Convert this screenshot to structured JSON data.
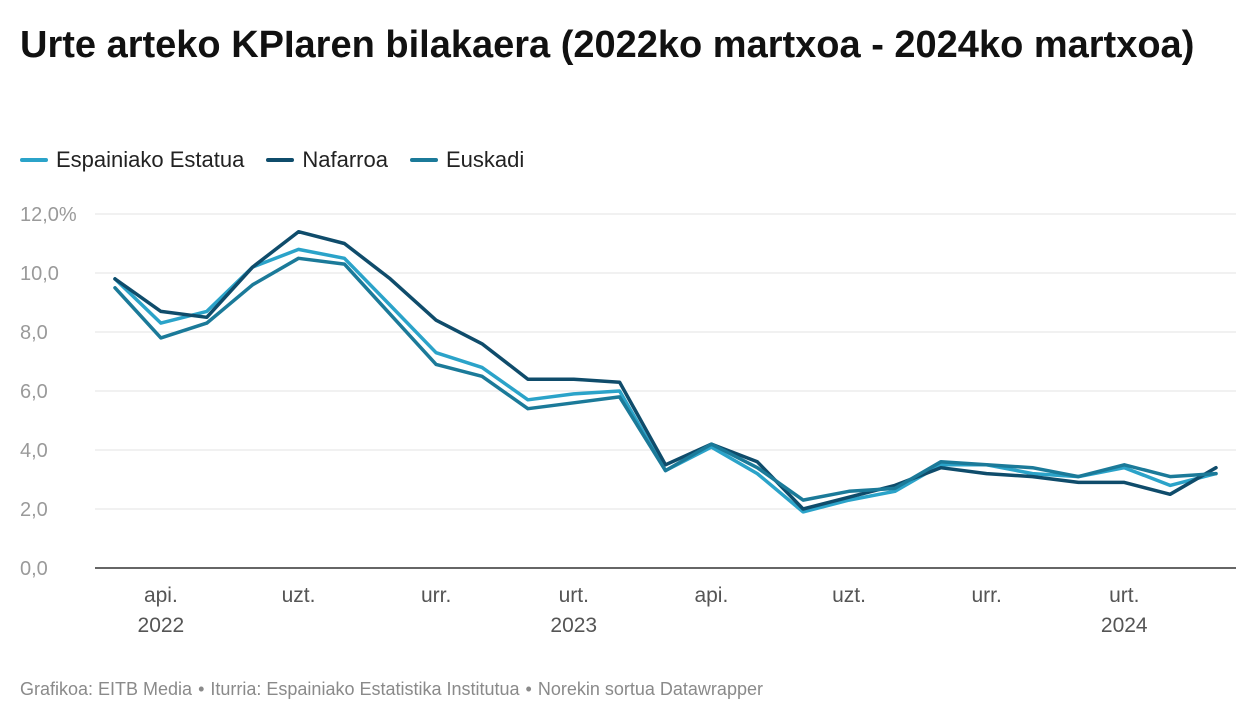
{
  "title": "Urte arteko KPIaren bilakaera (2022ko martxoa - 2024ko martxoa)",
  "footer": {
    "credit": "Grafikoa: EITB Media",
    "source": "Iturria: Espainiako Estatistika Institutua",
    "tool": "Norekin sortua Datawrapper"
  },
  "chart_data": {
    "type": "line",
    "x": [
      "2022-03",
      "2022-04",
      "2022-05",
      "2022-06",
      "2022-07",
      "2022-08",
      "2022-09",
      "2022-10",
      "2022-11",
      "2022-12",
      "2023-01",
      "2023-02",
      "2023-03",
      "2023-04",
      "2023-05",
      "2023-06",
      "2023-07",
      "2023-08",
      "2023-09",
      "2023-10",
      "2023-11",
      "2023-12",
      "2024-01",
      "2024-02",
      "2024-03"
    ],
    "x_ticks": [
      {
        "x": "2022-04",
        "label": "api.",
        "year": "2022"
      },
      {
        "x": "2022-07",
        "label": "uzt.",
        "year": ""
      },
      {
        "x": "2022-10",
        "label": "urr.",
        "year": ""
      },
      {
        "x": "2023-01",
        "label": "urt.",
        "year": "2023"
      },
      {
        "x": "2023-04",
        "label": "api.",
        "year": ""
      },
      {
        "x": "2023-07",
        "label": "uzt.",
        "year": ""
      },
      {
        "x": "2023-10",
        "label": "urr.",
        "year": ""
      },
      {
        "x": "2024-01",
        "label": "urt.",
        "year": "2024"
      }
    ],
    "y_ticks": [
      "0,0",
      "2,0",
      "4,0",
      "6,0",
      "8,0",
      "10,0",
      "12,0%"
    ],
    "ylim": [
      0,
      12
    ],
    "grid": true,
    "legend_position": "top-left",
    "series": [
      {
        "name": "Espainiako Estatua",
        "color": "#2ba3c9",
        "values": [
          9.8,
          8.3,
          8.7,
          10.2,
          10.8,
          10.5,
          8.9,
          7.3,
          6.8,
          5.7,
          5.9,
          6.0,
          3.3,
          4.1,
          3.2,
          1.9,
          2.3,
          2.6,
          3.5,
          3.5,
          3.2,
          3.1,
          3.4,
          2.8,
          3.2
        ]
      },
      {
        "name": "Nafarroa",
        "color": "#0f4c6b",
        "values": [
          9.8,
          8.7,
          8.5,
          10.2,
          11.4,
          11.0,
          9.8,
          8.4,
          7.6,
          6.4,
          6.4,
          6.3,
          3.5,
          4.2,
          3.6,
          2.0,
          2.4,
          2.8,
          3.4,
          3.2,
          3.1,
          2.9,
          2.9,
          2.5,
          3.4
        ]
      },
      {
        "name": "Euskadi",
        "color": "#1b7a99",
        "values": [
          9.5,
          7.8,
          8.3,
          9.6,
          10.5,
          10.3,
          8.6,
          6.9,
          6.5,
          5.4,
          5.6,
          5.8,
          3.3,
          4.2,
          3.4,
          2.3,
          2.6,
          2.7,
          3.6,
          3.5,
          3.4,
          3.1,
          3.5,
          3.1,
          3.2
        ]
      }
    ]
  }
}
